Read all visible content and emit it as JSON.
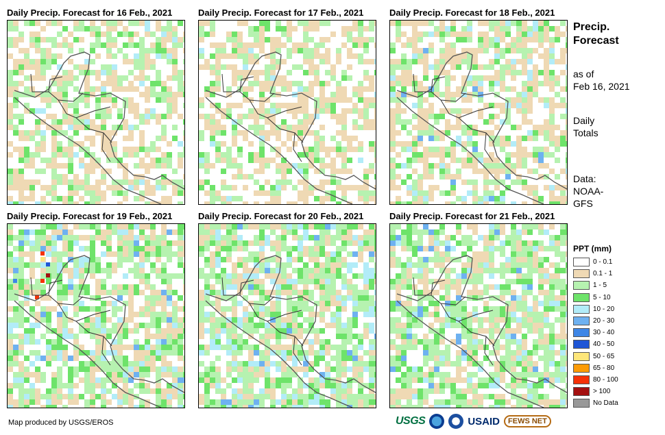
{
  "panels": [
    {
      "title": "Daily Precip. Forecast for 16 Feb., 2021"
    },
    {
      "title": "Daily Precip. Forecast for 17 Feb., 2021"
    },
    {
      "title": "Daily Precip. Forecast for 18 Feb., 2021"
    },
    {
      "title": "Daily Precip. Forecast for 19 Feb., 2021"
    },
    {
      "title": "Daily Precip. Forecast for 20 Feb., 2021"
    },
    {
      "title": "Daily Precip. Forecast for 21 Feb., 2021"
    }
  ],
  "sidebar": {
    "title_line1": "Precip.",
    "title_line2": "Forecast",
    "asof_line1": "as of",
    "asof_line2": "Feb 16, 2021",
    "totals_line1": "Daily",
    "totals_line2": "Totals",
    "data_line1": "Data:",
    "data_line2": "NOAA-",
    "data_line3": "GFS"
  },
  "legend": {
    "title": "PPT (mm)",
    "items": [
      {
        "label": "0 - 0.1",
        "color": "#ffffff"
      },
      {
        "label": "0.1 - 1",
        "color": "#efd9b4"
      },
      {
        "label": "1 - 5",
        "color": "#b6f2b0"
      },
      {
        "label": "5 - 10",
        "color": "#6ee36a"
      },
      {
        "label": "10 - 20",
        "color": "#b2ecf8"
      },
      {
        "label": "20 - 30",
        "color": "#6eb1f0"
      },
      {
        "label": "30 - 40",
        "color": "#3e86e6"
      },
      {
        "label": "40 - 50",
        "color": "#1f56d6"
      },
      {
        "label": "50 - 65",
        "color": "#fde67a"
      },
      {
        "label": "65 - 80",
        "color": "#fc9b06"
      },
      {
        "label": "80 - 100",
        "color": "#f53208"
      },
      {
        "label": "> 100",
        "color": "#a41010"
      },
      {
        "label": "No Data",
        "color": "#999999"
      }
    ]
  },
  "credit": "Map produced by USGS/EROS",
  "logos": {
    "usgs": "USGS",
    "usaid": "USAID",
    "fews": "FEWS NET"
  }
}
